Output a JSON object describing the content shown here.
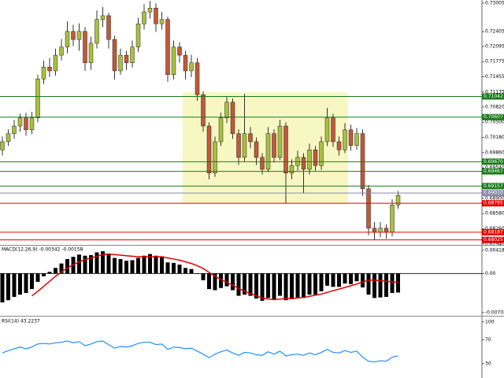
{
  "chart_data": [
    {
      "type": "candlestick",
      "open": [
        0.6992,
        0.7009,
        0.7026,
        0.7042,
        0.7059,
        0.7034,
        0.7059,
        0.7141,
        0.7166,
        0.7158,
        0.7191,
        0.7208,
        0.7241,
        0.7224,
        0.7241,
        0.7175,
        0.7216,
        0.7266,
        0.7274,
        0.7224,
        0.7158,
        0.7191,
        0.7175,
        0.7208,
        0.7257,
        0.7282,
        0.729,
        0.7257,
        0.7266,
        0.715,
        0.7208,
        0.7191,
        0.7158,
        0.7175,
        0.7108,
        0.7042,
        0.6943,
        0.7009,
        0.7059,
        0.7092,
        0.7026,
        0.6976,
        0.7026,
        0.7009,
        0.6976,
        0.6951,
        0.7026,
        0.6976,
        0.7042,
        0.6943,
        0.6959,
        0.6976,
        0.6951,
        0.6992,
        0.6959,
        0.7009,
        0.7059,
        0.7009,
        0.6992,
        0.7034,
        0.7001,
        0.7026,
        0.691,
        0.6827,
        0.6819,
        0.6827,
        0.6819,
        0.6876
      ],
      "high": [
        0.702,
        0.7035,
        0.7055,
        0.7068,
        0.707,
        0.7072,
        0.715,
        0.718,
        0.7185,
        0.7205,
        0.7225,
        0.7262,
        0.7255,
        0.7258,
        0.725,
        0.723,
        0.7285,
        0.7292,
        0.728,
        0.7232,
        0.7205,
        0.72,
        0.7222,
        0.727,
        0.7298,
        0.7305,
        0.73,
        0.7282,
        0.7272,
        0.7222,
        0.7218,
        0.72,
        0.7192,
        0.7185,
        0.7115,
        0.705,
        0.702,
        0.707,
        0.7105,
        0.71,
        0.7035,
        0.711,
        0.704,
        0.7018,
        0.6985,
        0.704,
        0.7035,
        0.7055,
        0.705,
        0.6972,
        0.699,
        0.6985,
        0.7005,
        0.7,
        0.702,
        0.708,
        0.7068,
        0.702,
        0.7048,
        0.7045,
        0.7038,
        0.7035,
        0.6918,
        0.684,
        0.684,
        0.6835,
        0.6888,
        0.6905
      ],
      "low": [
        0.698,
        0.7,
        0.7015,
        0.703,
        0.7022,
        0.7025,
        0.705,
        0.713,
        0.7145,
        0.7148,
        0.718,
        0.7195,
        0.721,
        0.72,
        0.7158,
        0.716,
        0.7205,
        0.725,
        0.7205,
        0.714,
        0.715,
        0.716,
        0.7165,
        0.7198,
        0.7245,
        0.7268,
        0.724,
        0.7245,
        0.7135,
        0.714,
        0.7175,
        0.714,
        0.7145,
        0.7095,
        0.703,
        0.693,
        0.6935,
        0.7,
        0.7048,
        0.7015,
        0.696,
        0.6968,
        0.6995,
        0.696,
        0.694,
        0.6945,
        0.6965,
        0.697,
        0.688,
        0.693,
        0.6948,
        0.69,
        0.694,
        0.6948,
        0.695,
        0.7,
        0.6998,
        0.698,
        0.6985,
        0.699,
        0.6992,
        0.6895,
        0.6812,
        0.6802,
        0.6808,
        0.6805,
        0.681,
        0.6868
      ],
      "close": [
        0.7009,
        0.7026,
        0.7042,
        0.7059,
        0.7034,
        0.7059,
        0.7141,
        0.7166,
        0.7158,
        0.7191,
        0.7208,
        0.7241,
        0.7224,
        0.7241,
        0.7175,
        0.7216,
        0.7266,
        0.7274,
        0.7224,
        0.7158,
        0.7191,
        0.7175,
        0.7208,
        0.7257,
        0.7282,
        0.729,
        0.7257,
        0.7266,
        0.715,
        0.7208,
        0.7191,
        0.7158,
        0.7175,
        0.7108,
        0.7042,
        0.6943,
        0.7009,
        0.7059,
        0.7092,
        0.7026,
        0.6976,
        0.7026,
        0.7009,
        0.6976,
        0.6951,
        0.7026,
        0.6976,
        0.7042,
        0.6943,
        0.6959,
        0.6976,
        0.6951,
        0.6992,
        0.6959,
        0.7009,
        0.7059,
        0.7009,
        0.6992,
        0.7034,
        0.7001,
        0.7026,
        0.691,
        0.6827,
        0.6819,
        0.6827,
        0.6819,
        0.6876,
        0.6896
      ],
      "up_color": "#a8c040",
      "down_color": "#c05a3a",
      "ylim": [
        0.6792,
        0.7307
      ],
      "yticks": [
        0.73005,
        0.72405,
        0.72095,
        0.71775,
        0.71455,
        0.71135,
        {
          "value": 0.7082,
          "label": "0.70820"
        },
        {
          "value": 0.705,
          "label": "0.70500"
        },
        {
          "value": 0.7018,
          "label": "0.70180"
        },
        {
          "value": 0.6986,
          "label": "0.69860"
        },
        {
          "value": 0.6954,
          "label": "0.69540"
        },
        {
          "value": 0.689,
          "label": "0.68900"
        },
        {
          "value": 0.6858,
          "label": "0.68580"
        },
        {
          "value": 0.6826,
          "label": "0.68260"
        },
        {
          "value": 0.6794,
          "label": "0.67940"
        }
      ],
      "levels": [
        {
          "value": 0.71042,
          "color": "#1a7a1a"
        },
        {
          "value": 0.70607,
          "color": "#1a7a1a"
        },
        {
          "value": 0.6967,
          "label": "0.69670",
          "color": "#1a7a1a"
        },
        {
          "value": 0.69467,
          "color": "#1a7a1a"
        },
        {
          "value": 0.69157,
          "color": "#1a7a1a"
        },
        {
          "value": 0.6901,
          "label": "0.69010",
          "color": "#8888aa"
        },
        {
          "value": 0.68795,
          "color": "#e00000"
        },
        {
          "value": 0.68187,
          "color": "#e00000"
        },
        {
          "value": 0.68025,
          "color": "#e00000"
        }
      ],
      "zone": {
        "start": 31,
        "end": 58,
        "top": 0.7113,
        "bottom": 0.6879,
        "color": "#f7f7c4"
      }
    },
    {
      "type": "macd",
      "title": "MACD(12,26,9) -0.00342 -0.00158",
      "ylim": [
        -0.0076,
        0.005
      ],
      "yticks": [
        0.00418,
        {
          "value": 0,
          "label": "0.00"
        },
        -0.00702
      ],
      "series": [
        {
          "color": "#000000",
          "values": [
            -0.0052,
            -0.0048,
            -0.0042,
            -0.0038,
            -0.0035,
            -0.0028,
            -0.0015,
            -0.0005,
            0.0003,
            0.001,
            0.0018,
            0.0026,
            0.003,
            0.0034,
            0.0032,
            0.0033,
            0.0038,
            0.004,
            0.0036,
            0.0028,
            0.0026,
            0.0023,
            0.0024,
            0.0028,
            0.0032,
            0.0035,
            0.0032,
            0.0031,
            0.002,
            0.0019,
            0.0016,
            0.001,
            0.0008,
            0.0,
            -0.0012,
            -0.0028,
            -0.003,
            -0.0026,
            -0.0023,
            -0.003,
            -0.004,
            -0.0038,
            -0.004,
            -0.0045,
            -0.0049,
            -0.0044,
            -0.0046,
            -0.004,
            -0.0048,
            -0.0046,
            -0.0043,
            -0.0044,
            -0.0038,
            -0.0038,
            -0.0032,
            -0.0022,
            -0.0024,
            -0.0024,
            -0.0018,
            -0.0019,
            -0.0014,
            -0.0025,
            -0.0038,
            -0.0044,
            -0.0043,
            -0.0042,
            -0.0035,
            -0.00342
          ]
        },
        {
          "color": "#e00000",
          "values": [
            null,
            null,
            null,
            null,
            null,
            -0.004,
            -0.0032,
            -0.0023,
            -0.0014,
            -0.0005,
            0.0003,
            0.001,
            0.0016,
            0.0021,
            0.0025,
            0.0028,
            0.0031,
            0.0034,
            0.0035,
            0.0034,
            0.0033,
            0.0032,
            0.0031,
            0.003,
            0.003,
            0.003,
            0.003,
            0.003,
            0.0028,
            0.0026,
            0.0024,
            0.0021,
            0.0018,
            0.0014,
            0.0009,
            0.0002,
            -0.0005,
            -0.0011,
            -0.0016,
            -0.0021,
            -0.0027,
            -0.0032,
            -0.0036,
            -0.004,
            -0.0044,
            -0.0046,
            -0.0047,
            -0.0046,
            -0.0045,
            -0.0045,
            -0.0044,
            -0.0043,
            -0.0041,
            -0.0039,
            -0.0037,
            -0.0034,
            -0.0031,
            -0.0028,
            -0.0025,
            -0.0022,
            -0.0019,
            -0.0015,
            -0.0012,
            -0.0012,
            -0.0013,
            -0.0014,
            -0.0015,
            -0.00158
          ]
        }
      ]
    },
    {
      "type": "line",
      "title": "RSI(14) 43.2237",
      "ylim": [
        6,
        109
      ],
      "yticks": [
        100,
        70,
        30
      ],
      "series": [
        {
          "color": "#1e90ff",
          "values": [
            48,
            52,
            55,
            58,
            55,
            58,
            63,
            64,
            63,
            65,
            66,
            68,
            65,
            67,
            60,
            63,
            67,
            68,
            62,
            56,
            59,
            58,
            60,
            64,
            66,
            66,
            62,
            63,
            54,
            58,
            57,
            55,
            56,
            51,
            46,
            40,
            46,
            50,
            53,
            48,
            44,
            49,
            48,
            45,
            44,
            50,
            46,
            51,
            43,
            45,
            46,
            44,
            48,
            45,
            49,
            54,
            49,
            48,
            52,
            49,
            51,
            41,
            34,
            33,
            35,
            34,
            41,
            43.2237
          ]
        }
      ]
    }
  ]
}
